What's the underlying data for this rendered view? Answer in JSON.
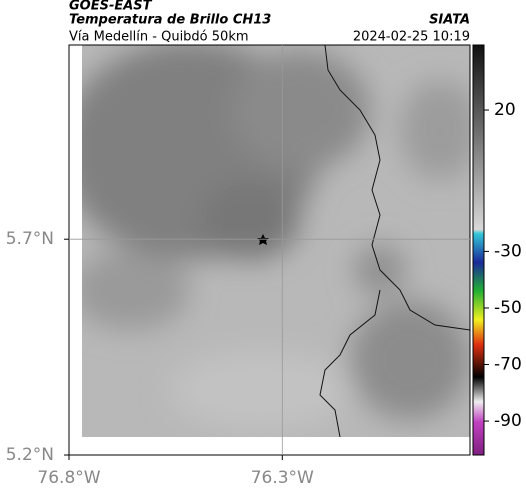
{
  "header": {
    "source": "GOES-EAST",
    "product": "Temperatura de Brillo CH13",
    "region": "Vía Medellín - Quibdó 50km",
    "agency": "SIATA",
    "datetime": "2024-02-25 10:19"
  },
  "map": {
    "xlim": [
      -76.8,
      -75.86
    ],
    "ylim": [
      5.2,
      6.15
    ],
    "xticks": [
      {
        "value": -76.8,
        "label": "76.8°W"
      },
      {
        "value": -76.3,
        "label": "76.3°W"
      }
    ],
    "yticks": [
      {
        "value": 5.2,
        "label": "5.2°N"
      },
      {
        "value": 5.7,
        "label": "5.7°N"
      }
    ]
  },
  "colorbar": {
    "clim": [
      -102,
      43
    ],
    "ticks": [
      20,
      -30,
      -50,
      -70,
      -90
    ]
  }
}
